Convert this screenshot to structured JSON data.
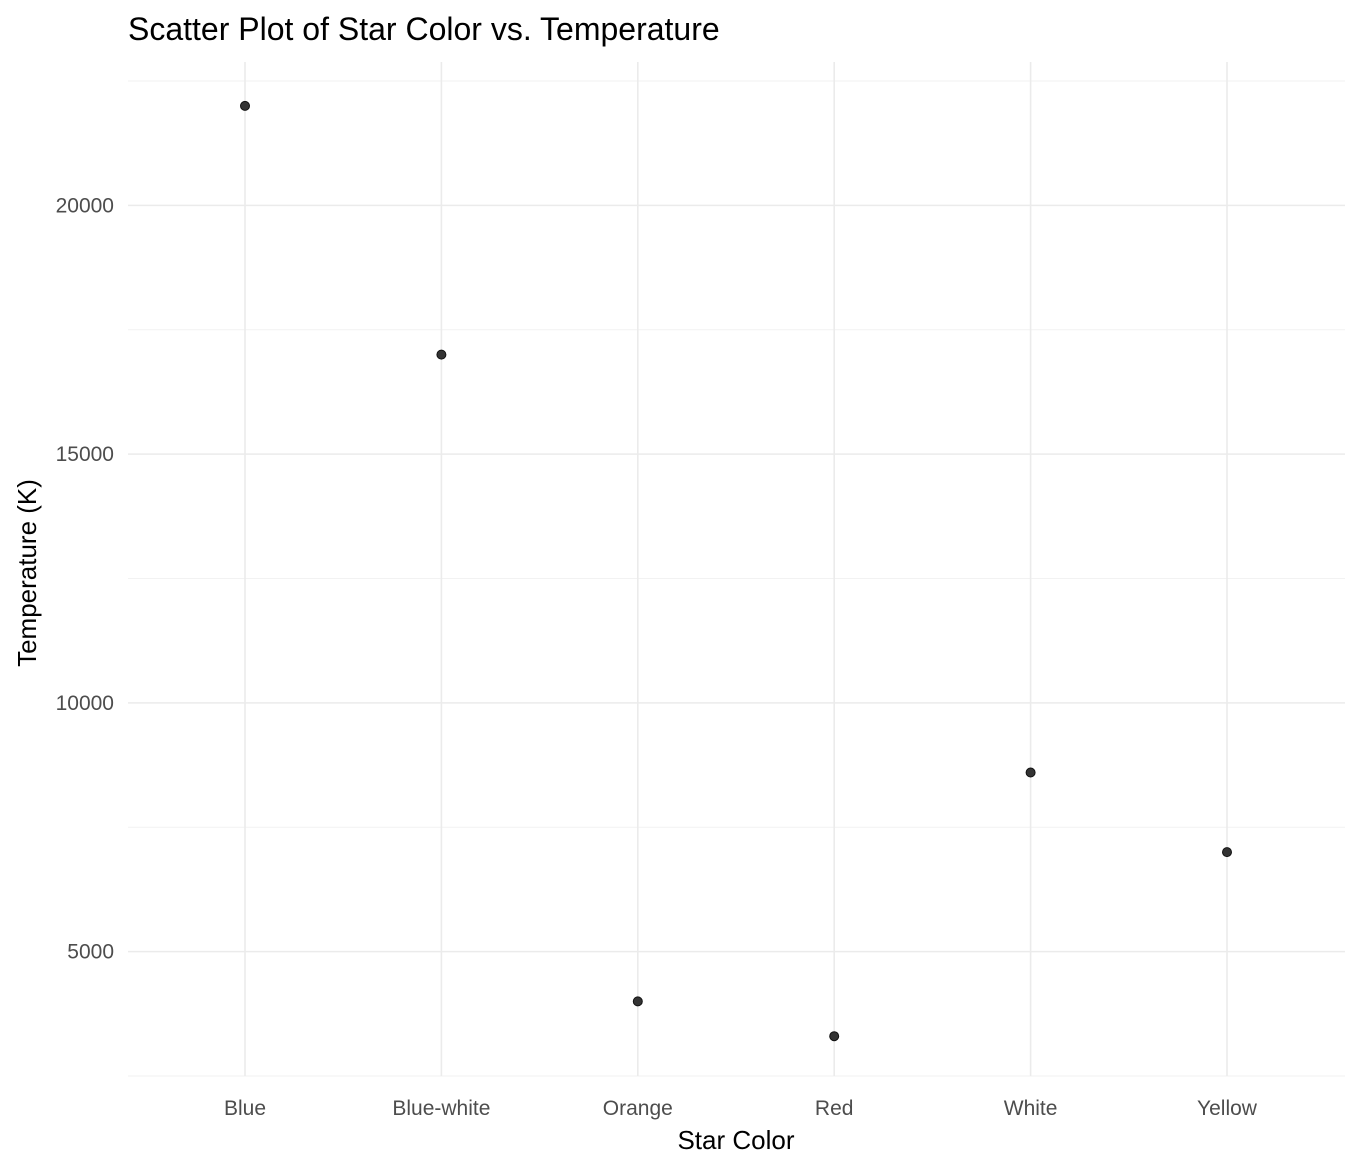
{
  "chart_data": {
    "type": "scatter",
    "title": "Scatter Plot of Star Color vs. Temperature",
    "xlabel": "Star Color",
    "ylabel": "Temperature (K)",
    "categories": [
      "Blue",
      "Blue-white",
      "Orange",
      "Red",
      "White",
      "Yellow"
    ],
    "values": [
      22000,
      17000,
      4000,
      3300,
      8600,
      7000
    ],
    "ylim": [
      2500,
      22500
    ],
    "yticks": [
      5000,
      10000,
      15000,
      20000
    ],
    "ytick_labels": [
      "5000",
      "10000",
      "15000",
      "20000"
    ],
    "grid": true,
    "point_color": "#333333"
  }
}
